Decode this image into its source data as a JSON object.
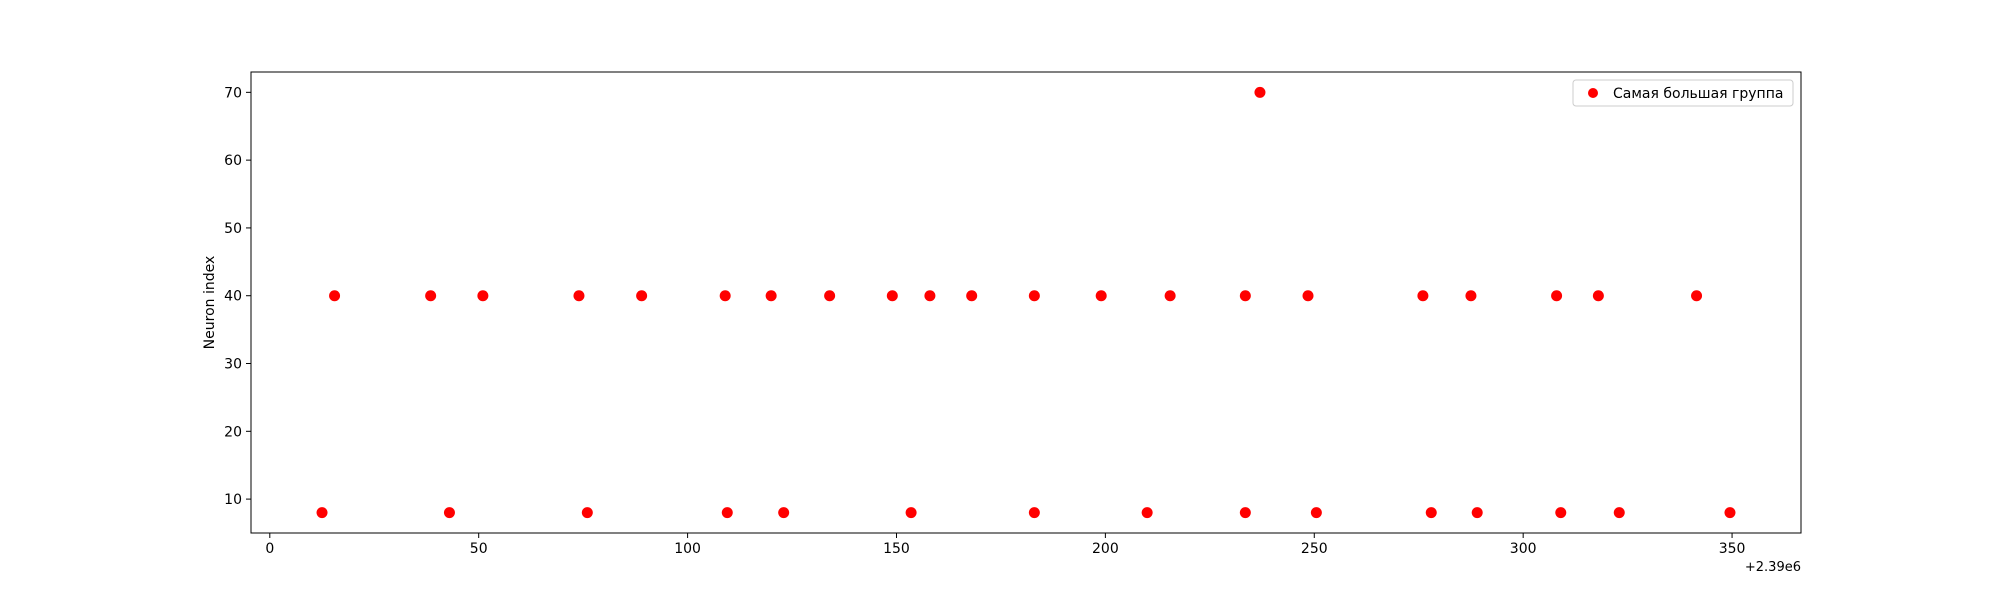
{
  "chart_data": {
    "type": "scatter",
    "title": "",
    "xlabel": "",
    "ylabel": "Neuron index",
    "x_offset_label": "+2.39e6",
    "xlim": [
      -4.5,
      366.5
    ],
    "ylim": [
      5,
      73
    ],
    "xticks": [
      0,
      50,
      100,
      150,
      200,
      250,
      300,
      350
    ],
    "yticks": [
      10,
      20,
      30,
      40,
      50,
      60,
      70
    ],
    "grid": false,
    "legend_position": "upper right",
    "series": [
      {
        "name": "Самая большая группа",
        "color": "#ff0000",
        "points": [
          {
            "x": 12.5,
            "y": 8
          },
          {
            "x": 15.5,
            "y": 40
          },
          {
            "x": 38.5,
            "y": 40
          },
          {
            "x": 43,
            "y": 8
          },
          {
            "x": 51,
            "y": 40
          },
          {
            "x": 74,
            "y": 40
          },
          {
            "x": 76,
            "y": 8
          },
          {
            "x": 89,
            "y": 40
          },
          {
            "x": 109,
            "y": 40
          },
          {
            "x": 109.5,
            "y": 8
          },
          {
            "x": 120,
            "y": 40
          },
          {
            "x": 123,
            "y": 8
          },
          {
            "x": 134,
            "y": 40
          },
          {
            "x": 149,
            "y": 40
          },
          {
            "x": 153.5,
            "y": 8
          },
          {
            "x": 158,
            "y": 40
          },
          {
            "x": 168,
            "y": 40
          },
          {
            "x": 183,
            "y": 40
          },
          {
            "x": 183,
            "y": 8
          },
          {
            "x": 199,
            "y": 40
          },
          {
            "x": 210,
            "y": 8
          },
          {
            "x": 215.5,
            "y": 40
          },
          {
            "x": 233.5,
            "y": 40
          },
          {
            "x": 233.5,
            "y": 8
          },
          {
            "x": 237,
            "y": 70
          },
          {
            "x": 248.5,
            "y": 40
          },
          {
            "x": 250.5,
            "y": 8
          },
          {
            "x": 276,
            "y": 40
          },
          {
            "x": 278,
            "y": 8
          },
          {
            "x": 287.5,
            "y": 40
          },
          {
            "x": 289,
            "y": 8
          },
          {
            "x": 308,
            "y": 40
          },
          {
            "x": 309,
            "y": 8
          },
          {
            "x": 318,
            "y": 40
          },
          {
            "x": 323,
            "y": 8
          },
          {
            "x": 341.5,
            "y": 40
          },
          {
            "x": 349.5,
            "y": 8
          }
        ]
      }
    ]
  }
}
